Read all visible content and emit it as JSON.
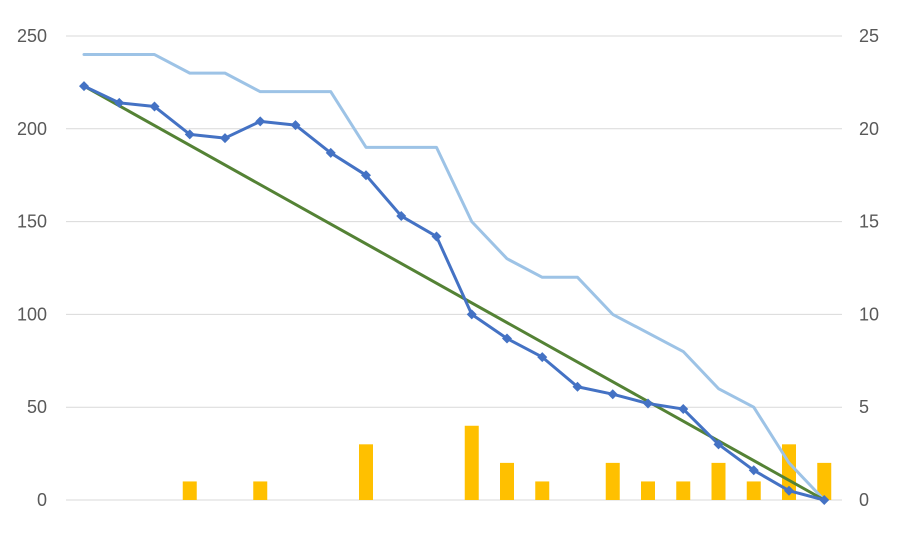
{
  "chart_data": {
    "type": "line",
    "title": "",
    "xlabel": "",
    "ylabel": "",
    "x_count": 22,
    "ylim": [
      0,
      250
    ],
    "y_ticks": [
      "0",
      "50",
      "100",
      "150",
      "200",
      "250"
    ],
    "y2lim": [
      0,
      25
    ],
    "y2_ticks": [
      "0",
      "5",
      "10",
      "15",
      "20",
      "25"
    ],
    "grid": true,
    "legend": "none",
    "series": [
      {
        "type": "bar",
        "axis": "right",
        "color": "#FFC000",
        "values": [
          0,
          0,
          0,
          1,
          0,
          1,
          0,
          0,
          3,
          0,
          0,
          4,
          2,
          1,
          0,
          2,
          1,
          1,
          2,
          1,
          3,
          2
        ]
      },
      {
        "type": "line",
        "axis": "right",
        "color": "#9DC3E6",
        "step": true,
        "values": [
          24,
          24,
          24,
          23,
          23,
          22,
          22,
          22,
          19,
          19,
          19,
          15,
          13,
          12,
          12,
          10,
          9,
          8,
          6,
          5,
          2,
          0
        ]
      },
      {
        "type": "line",
        "axis": "left",
        "color": "#548235",
        "values": [
          223,
          0
        ],
        "x_index": [
          0,
          21
        ]
      },
      {
        "type": "line",
        "axis": "left",
        "color": "#4472C4",
        "marker": "diamond",
        "values": [
          223,
          214,
          212,
          197,
          195,
          204,
          202,
          187,
          175,
          153,
          142,
          100,
          87,
          77,
          61,
          57,
          52,
          49,
          30,
          16,
          5,
          0
        ]
      }
    ]
  }
}
